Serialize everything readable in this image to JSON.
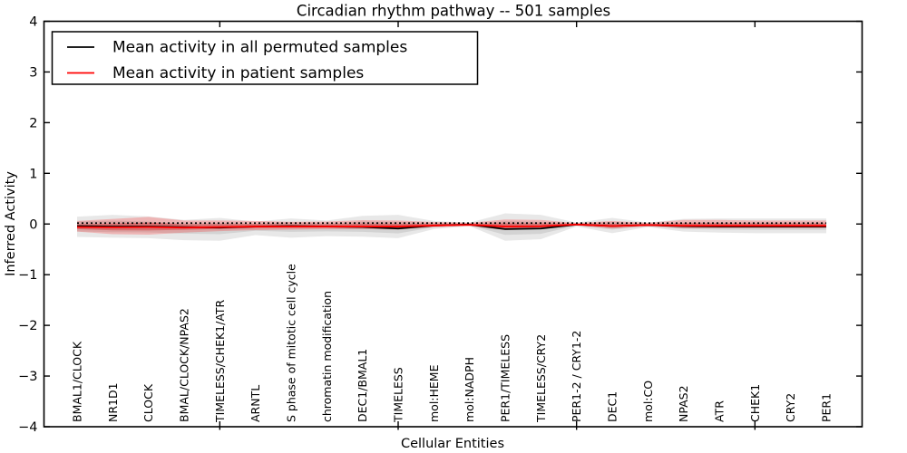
{
  "chart_data": {
    "type": "line",
    "title": "Circadian rhythm pathway -- 501 samples",
    "xlabel": "Cellular Entities",
    "ylabel": "Inferred Activity",
    "ylim": [
      -4,
      4
    ],
    "grid": false,
    "legend_position": "upper left",
    "y_ticks": [
      {
        "v": -4,
        "label": "−4"
      },
      {
        "v": -3,
        "label": "−3"
      },
      {
        "v": -2,
        "label": "−2"
      },
      {
        "v": -1,
        "label": "−1"
      },
      {
        "v": 0,
        "label": "0"
      },
      {
        "v": 1,
        "label": "1"
      },
      {
        "v": 2,
        "label": "2"
      },
      {
        "v": 3,
        "label": "3"
      },
      {
        "v": 4,
        "label": "4"
      }
    ],
    "x_marked_tick_indices": [
      4,
      9,
      14,
      19
    ],
    "categories": [
      "BMAL1/CLOCK",
      "NR1D1",
      "CLOCK",
      "BMAL/CLOCK/NPAS2",
      "TIMELESS/CHEK1/ATR",
      "ARNTL",
      "S phase of mitotic cell cycle",
      "chromatin modification",
      "DEC1/BMAL1",
      "TIMELESS",
      "mol:HEME",
      "mol:NADPH",
      "PER1/TIMELESS",
      "TIMELESS/CRY2",
      "PER1-2 / CRY1-2",
      "DEC1",
      "mol:CO",
      "NPAS2",
      "ATR",
      "CHEK1",
      "CRY2",
      "PER1"
    ],
    "legend": [
      {
        "label": "Mean activity in all permuted samples",
        "color": "#000000"
      },
      {
        "label": "Mean activity in patient samples",
        "color": "#ff0000"
      }
    ],
    "zero_reference": 0,
    "series": [
      {
        "name": "permuted",
        "line_color": "#000000",
        "band_color": "#000000",
        "mean": [
          -0.04,
          -0.05,
          -0.05,
          -0.06,
          -0.07,
          -0.05,
          -0.04,
          -0.05,
          -0.06,
          -0.09,
          -0.03,
          -0.01,
          -0.1,
          -0.09,
          -0.01,
          -0.04,
          -0.02,
          -0.045,
          -0.05,
          -0.05,
          -0.05,
          -0.05
        ],
        "upper": [
          0.145,
          0.18,
          0.15,
          0.08,
          0.12,
          0.05,
          0.11,
          0.07,
          0.16,
          0.18,
          0.06,
          0.03,
          0.21,
          0.18,
          0.03,
          0.12,
          0.03,
          0.1,
          0.11,
          0.11,
          0.11,
          0.11
        ],
        "lower": [
          -0.255,
          -0.27,
          -0.28,
          -0.32,
          -0.33,
          -0.22,
          -0.27,
          -0.24,
          -0.25,
          -0.28,
          -0.1,
          -0.04,
          -0.33,
          -0.3,
          -0.05,
          -0.18,
          -0.06,
          -0.15,
          -0.17,
          -0.18,
          -0.18,
          -0.18
        ]
      },
      {
        "name": "patient",
        "line_color": "#ff0000",
        "band_color": "#ff0000",
        "mean": [
          -0.06,
          -0.065,
          -0.06,
          -0.07,
          -0.06,
          -0.05,
          -0.05,
          -0.05,
          -0.05,
          -0.05,
          -0.03,
          -0.015,
          -0.05,
          -0.045,
          -0.01,
          -0.04,
          -0.02,
          -0.035,
          -0.035,
          -0.035,
          -0.035,
          -0.035
        ],
        "upper": [
          0.06,
          0.1,
          0.14,
          0.07,
          0.07,
          0.06,
          0.045,
          0.05,
          0.075,
          0.07,
          0.04,
          0.025,
          0.09,
          0.08,
          0.02,
          0.06,
          0.025,
          0.08,
          0.08,
          0.07,
          0.07,
          0.07
        ],
        "lower": [
          -0.15,
          -0.2,
          -0.21,
          -0.17,
          -0.14,
          -0.12,
          -0.11,
          -0.1,
          -0.1,
          -0.11,
          -0.06,
          -0.04,
          -0.12,
          -0.1,
          -0.03,
          -0.09,
          -0.045,
          -0.08,
          -0.08,
          -0.08,
          -0.08,
          -0.08
        ]
      }
    ]
  }
}
